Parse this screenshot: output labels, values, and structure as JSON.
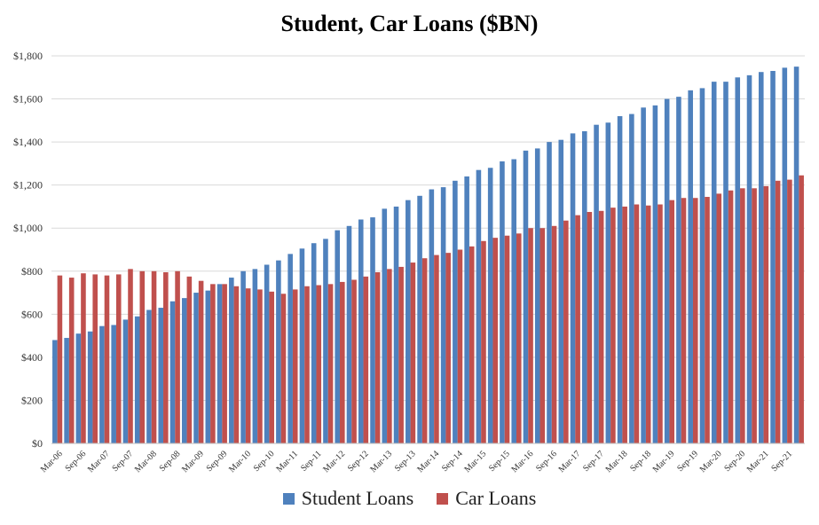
{
  "chart_data": {
    "type": "bar",
    "title": "Student, Car Loans ($BN)",
    "xlabel": "",
    "ylabel": "",
    "ylim": [
      0,
      1800
    ],
    "yticks": [
      "$0",
      "$200",
      "$400",
      "$600",
      "$800",
      "$1,000",
      "$1,200",
      "$1,400",
      "$1,600",
      "$1,800"
    ],
    "grid": true,
    "legend_position": "bottom",
    "x_tick_labels": [
      "Mar-06",
      "Sep-06",
      "Mar-07",
      "Sep-07",
      "Mar-08",
      "Sep-08",
      "Mar-09",
      "Sep-09",
      "Mar-10",
      "Sep-10",
      "Mar-11",
      "Sep-11",
      "Mar-12",
      "Sep-12",
      "Mar-13",
      "Sep-13",
      "Mar-14",
      "Sep-14",
      "Mar-15",
      "Sep-15",
      "Mar-16",
      "Sep-16",
      "Mar-17",
      "Sep-17",
      "Mar-18",
      "Sep-18",
      "Mar-19",
      "Sep-19",
      "Mar-20",
      "Sep-20",
      "Mar-21",
      "Sep-21"
    ],
    "categories": [
      "Mar-06",
      "Jun-06",
      "Sep-06",
      "Dec-06",
      "Mar-07",
      "Jun-07",
      "Sep-07",
      "Dec-07",
      "Mar-08",
      "Jun-08",
      "Sep-08",
      "Dec-08",
      "Mar-09",
      "Jun-09",
      "Sep-09",
      "Dec-09",
      "Mar-10",
      "Jun-10",
      "Sep-10",
      "Dec-10",
      "Mar-11",
      "Jun-11",
      "Sep-11",
      "Dec-11",
      "Mar-12",
      "Jun-12",
      "Sep-12",
      "Dec-12",
      "Mar-13",
      "Jun-13",
      "Sep-13",
      "Dec-13",
      "Mar-14",
      "Jun-14",
      "Sep-14",
      "Dec-14",
      "Mar-15",
      "Jun-15",
      "Sep-15",
      "Dec-15",
      "Mar-16",
      "Jun-16",
      "Sep-16",
      "Dec-16",
      "Mar-17",
      "Jun-17",
      "Sep-17",
      "Dec-17",
      "Mar-18",
      "Jun-18",
      "Sep-18",
      "Dec-18",
      "Mar-19",
      "Jun-19",
      "Sep-19",
      "Dec-19",
      "Mar-20",
      "Jun-20",
      "Sep-20",
      "Dec-20",
      "Mar-21",
      "Jun-21",
      "Sep-21",
      "Dec-21"
    ],
    "series": [
      {
        "name": "Student Loans",
        "color": "#4f81bd",
        "values": [
          480,
          490,
          510,
          520,
          545,
          550,
          575,
          590,
          620,
          630,
          660,
          675,
          700,
          710,
          740,
          770,
          800,
          810,
          830,
          850,
          880,
          905,
          930,
          950,
          990,
          1010,
          1040,
          1050,
          1090,
          1100,
          1130,
          1150,
          1180,
          1190,
          1220,
          1240,
          1270,
          1280,
          1310,
          1320,
          1360,
          1370,
          1400,
          1410,
          1440,
          1450,
          1480,
          1490,
          1520,
          1530,
          1560,
          1570,
          1600,
          1610,
          1640,
          1650,
          1680,
          1680,
          1700,
          1710,
          1725,
          1730,
          1745,
          1750
        ]
      },
      {
        "name": "Car Loans",
        "color": "#c0504d",
        "values": [
          780,
          770,
          790,
          785,
          780,
          785,
          810,
          800,
          800,
          795,
          800,
          775,
          755,
          740,
          740,
          730,
          720,
          715,
          705,
          695,
          715,
          730,
          735,
          740,
          750,
          760,
          775,
          795,
          810,
          820,
          840,
          860,
          875,
          885,
          900,
          915,
          940,
          955,
          965,
          975,
          1000,
          1000,
          1010,
          1035,
          1060,
          1075,
          1080,
          1095,
          1100,
          1110,
          1105,
          1110,
          1130,
          1140,
          1140,
          1145,
          1160,
          1175,
          1185,
          1185,
          1195,
          1220,
          1225,
          1245
        ]
      }
    ]
  }
}
